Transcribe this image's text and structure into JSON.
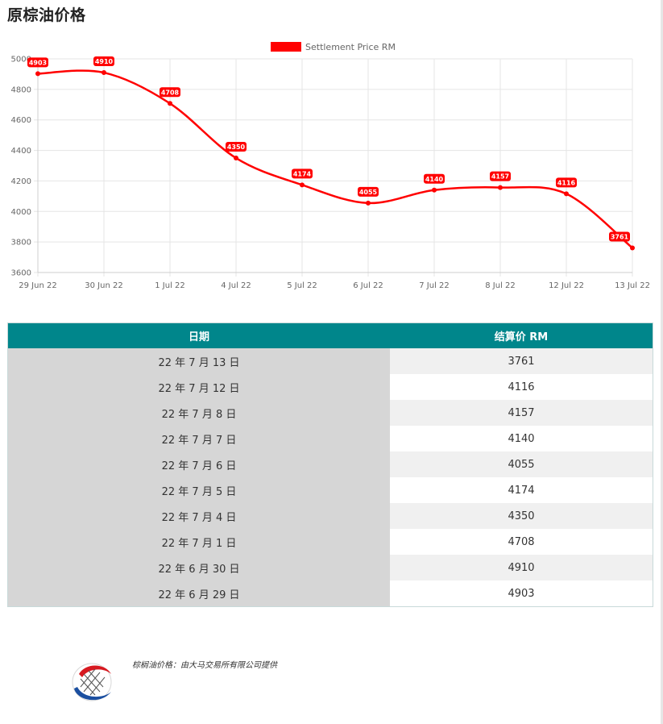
{
  "page_title": "原棕油价格",
  "chart_data": {
    "type": "line",
    "categories": [
      "29 Jun 22",
      "30 Jun 22",
      "1 Jul 22",
      "4 Jul 22",
      "5 Jul 22",
      "6 Jul 22",
      "7 Jul 22",
      "8 Jul 22",
      "12 Jul 22",
      "13 Jul 22"
    ],
    "series": [
      {
        "name": "Settlement Price RM",
        "values": [
          4903,
          4910,
          4708,
          4350,
          4174,
          4055,
          4140,
          4157,
          4116,
          3761
        ],
        "color": "#ff0000"
      }
    ],
    "ylim": [
      3600,
      5000
    ],
    "yticks": [
      3600,
      3800,
      4000,
      4200,
      4400,
      4600,
      4800,
      5000
    ],
    "grid": true,
    "legend_position": "top-center",
    "data_labels": true
  },
  "table": {
    "headers": [
      "日期",
      "结算价 RM"
    ],
    "rows": [
      {
        "date": "22 年 7 月 13 日",
        "price": "3761"
      },
      {
        "date": "22 年 7 月 12 日",
        "price": "4116"
      },
      {
        "date": "22 年 7 月 8 日",
        "price": "4157"
      },
      {
        "date": "22 年 7 月 7 日",
        "price": "4140"
      },
      {
        "date": "22 年 7 月 6 日",
        "price": "4055"
      },
      {
        "date": "22 年 7 月 5 日",
        "price": "4174"
      },
      {
        "date": "22 年 7 月 4 日",
        "price": "4350"
      },
      {
        "date": "22 年 7 月 1 日",
        "price": "4708"
      },
      {
        "date": "22 年 6 月 30 日",
        "price": "4910"
      },
      {
        "date": "22 年 6 月 29 日",
        "price": "4903"
      }
    ]
  },
  "footer": {
    "note": "棕榈油价格：由大马交易所有限公司提供",
    "logo_icon": "bursa-malaysia-logo-icon"
  }
}
